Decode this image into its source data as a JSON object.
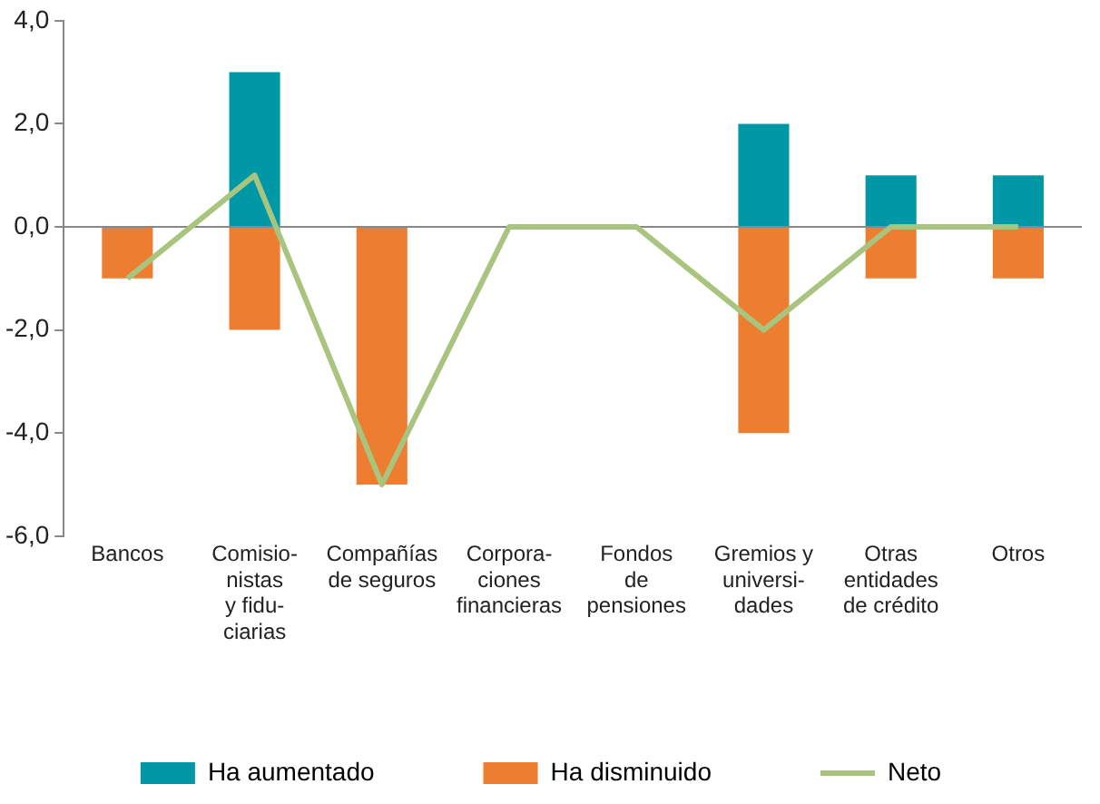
{
  "chart_data": {
    "type": "bar",
    "stacked": true,
    "categories": [
      "Bancos",
      "Comisio-\nnistas\ny fidu-\nciarias",
      "Compañías\nde seguros",
      "Corpora-\nciones\nfinancieras",
      "Fondos\nde\npensiones",
      "Gremios y\nuniversi-\ndades",
      "Otras\nentidades\nde crédito",
      "Otros"
    ],
    "series": [
      {
        "name": "Ha aumentado",
        "color": "#0097a7",
        "values": [
          0,
          3,
          0,
          0,
          0,
          2,
          1,
          1
        ]
      },
      {
        "name": "Ha disminuido",
        "color": "#ed7d31",
        "values": [
          -1,
          -2,
          -5,
          0,
          0,
          -4,
          -1,
          -1
        ]
      },
      {
        "name": "Neto",
        "type": "line",
        "color": "#a9c47f",
        "values": [
          -1,
          1,
          -5,
          0,
          0,
          -2,
          0,
          0
        ]
      }
    ],
    "ylim": [
      -6,
      4
    ],
    "yticks": [
      {
        "value": -6,
        "label": "-6,0"
      },
      {
        "value": -4,
        "label": "-4,0"
      },
      {
        "value": -2,
        "label": "-2,0"
      },
      {
        "value": 0,
        "label": "0,0"
      },
      {
        "value": 2,
        "label": "2,0"
      },
      {
        "value": 4,
        "label": "4,0"
      }
    ],
    "legend": "bottom",
    "marker": "none",
    "line_style": "solid"
  }
}
